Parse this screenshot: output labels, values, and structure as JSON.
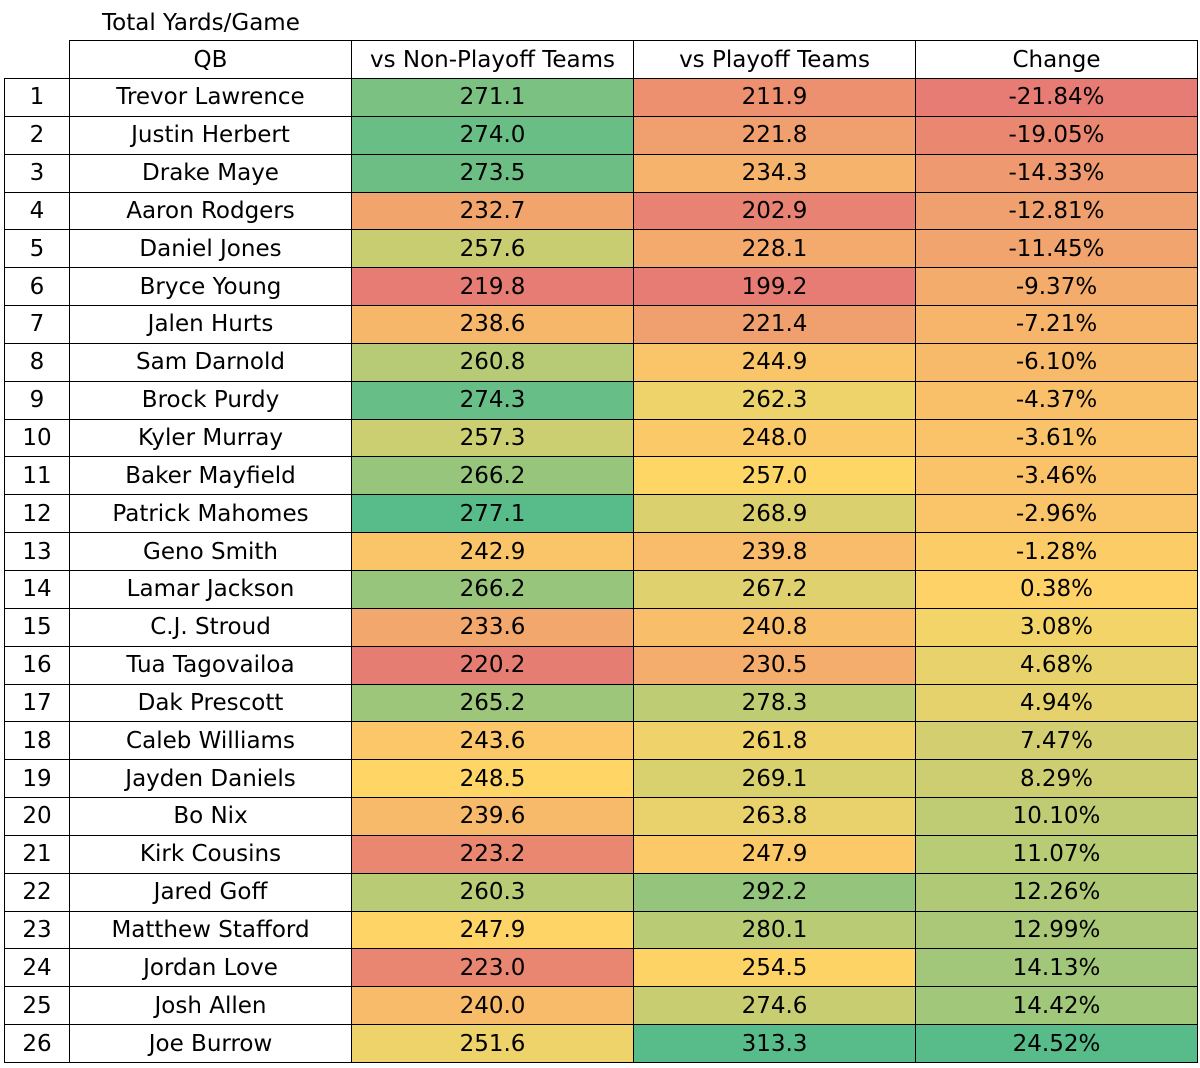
{
  "title": "Total Yards/Game",
  "headers": {
    "rank": "",
    "qb": "QB",
    "non_playoff": "vs Non-Playoff Teams",
    "playoff": "vs Playoff Teams",
    "change": "Change"
  },
  "color_scale": {
    "low": "#e67c73",
    "mid": "#ffd666",
    "high": "#57bb8a"
  },
  "chart_data": {
    "type": "table",
    "title": "Total Yards/Game",
    "columns": [
      "",
      "QB",
      "vs Non-Playoff Teams",
      "vs Playoff Teams",
      "Change"
    ],
    "rows": [
      {
        "rank": 1,
        "qb": "Trevor Lawrence",
        "non_playoff": "271.1",
        "playoff": "211.9",
        "change": "-21.84%"
      },
      {
        "rank": 2,
        "qb": "Justin Herbert",
        "non_playoff": "274.0",
        "playoff": "221.8",
        "change": "-19.05%"
      },
      {
        "rank": 3,
        "qb": "Drake Maye",
        "non_playoff": "273.5",
        "playoff": "234.3",
        "change": "-14.33%"
      },
      {
        "rank": 4,
        "qb": "Aaron Rodgers",
        "non_playoff": "232.7",
        "playoff": "202.9",
        "change": "-12.81%"
      },
      {
        "rank": 5,
        "qb": "Daniel Jones",
        "non_playoff": "257.6",
        "playoff": "228.1",
        "change": "-11.45%"
      },
      {
        "rank": 6,
        "qb": "Bryce Young",
        "non_playoff": "219.8",
        "playoff": "199.2",
        "change": "-9.37%"
      },
      {
        "rank": 7,
        "qb": "Jalen Hurts",
        "non_playoff": "238.6",
        "playoff": "221.4",
        "change": "-7.21%"
      },
      {
        "rank": 8,
        "qb": "Sam Darnold",
        "non_playoff": "260.8",
        "playoff": "244.9",
        "change": "-6.10%"
      },
      {
        "rank": 9,
        "qb": "Brock Purdy",
        "non_playoff": "274.3",
        "playoff": "262.3",
        "change": "-4.37%"
      },
      {
        "rank": 10,
        "qb": "Kyler Murray",
        "non_playoff": "257.3",
        "playoff": "248.0",
        "change": "-3.61%"
      },
      {
        "rank": 11,
        "qb": "Baker Mayfield",
        "non_playoff": "266.2",
        "playoff": "257.0",
        "change": "-3.46%"
      },
      {
        "rank": 12,
        "qb": "Patrick Mahomes",
        "non_playoff": "277.1",
        "playoff": "268.9",
        "change": "-2.96%"
      },
      {
        "rank": 13,
        "qb": "Geno Smith",
        "non_playoff": "242.9",
        "playoff": "239.8",
        "change": "-1.28%"
      },
      {
        "rank": 14,
        "qb": "Lamar Jackson",
        "non_playoff": "266.2",
        "playoff": "267.2",
        "change": "0.38%"
      },
      {
        "rank": 15,
        "qb": "C.J. Stroud",
        "non_playoff": "233.6",
        "playoff": "240.8",
        "change": "3.08%"
      },
      {
        "rank": 16,
        "qb": "Tua Tagovailoa",
        "non_playoff": "220.2",
        "playoff": "230.5",
        "change": "4.68%"
      },
      {
        "rank": 17,
        "qb": "Dak Prescott",
        "non_playoff": "265.2",
        "playoff": "278.3",
        "change": "4.94%"
      },
      {
        "rank": 18,
        "qb": "Caleb Williams",
        "non_playoff": "243.6",
        "playoff": "261.8",
        "change": "7.47%"
      },
      {
        "rank": 19,
        "qb": "Jayden Daniels",
        "non_playoff": "248.5",
        "playoff": "269.1",
        "change": "8.29%"
      },
      {
        "rank": 20,
        "qb": "Bo Nix",
        "non_playoff": "239.6",
        "playoff": "263.8",
        "change": "10.10%"
      },
      {
        "rank": 21,
        "qb": "Kirk Cousins",
        "non_playoff": "223.2",
        "playoff": "247.9",
        "change": "11.07%"
      },
      {
        "rank": 22,
        "qb": "Jared Goff",
        "non_playoff": "260.3",
        "playoff": "292.2",
        "change": "12.26%"
      },
      {
        "rank": 23,
        "qb": "Matthew Stafford",
        "non_playoff": "247.9",
        "playoff": "280.1",
        "change": "12.99%"
      },
      {
        "rank": 24,
        "qb": "Jordan Love",
        "non_playoff": "223.0",
        "playoff": "254.5",
        "change": "14.13%"
      },
      {
        "rank": 25,
        "qb": "Josh Allen",
        "non_playoff": "240.0",
        "playoff": "274.6",
        "change": "14.42%"
      },
      {
        "rank": 26,
        "qb": "Joe Burrow",
        "non_playoff": "251.6",
        "playoff": "313.3",
        "change": "24.52%"
      }
    ]
  }
}
